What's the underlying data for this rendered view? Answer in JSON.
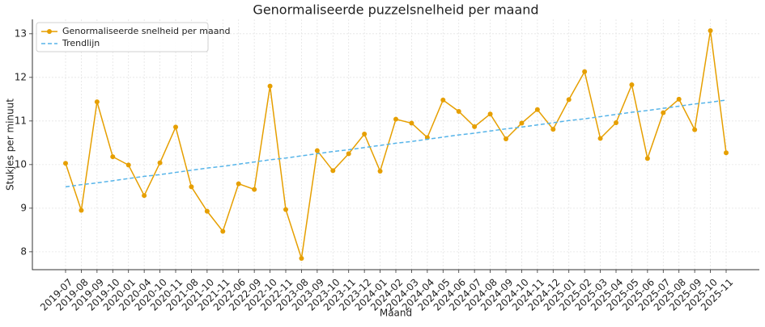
{
  "chart_data": {
    "type": "line",
    "title": "Genormaliseerde puzzelsnelheid per maand",
    "xlabel": "Maand",
    "ylabel": "Stukjes per minuut",
    "categories": [
      "2019-07",
      "2019-08",
      "2019-09",
      "2019-10",
      "2020-01",
      "2020-04",
      "2020-10",
      "2020-11",
      "2021-08",
      "2021-10",
      "2021-11",
      "2022-06",
      "2022-09",
      "2022-10",
      "2022-11",
      "2023-08",
      "2023-09",
      "2023-10",
      "2023-11",
      "2023-12",
      "2024-01",
      "2024-02",
      "2024-03",
      "2024-04",
      "2024-05",
      "2024-06",
      "2024-07",
      "2024-08",
      "2024-09",
      "2024-10",
      "2024-11",
      "2024-12",
      "2025-01",
      "2025-02",
      "2025-03",
      "2025-04",
      "2025-05",
      "2025-06",
      "2025-07",
      "2025-08",
      "2025-09",
      "2025-10",
      "2025-11"
    ],
    "series": [
      {
        "name": "Genormaliseerde snelheid per maand",
        "color": "#e69f00",
        "style": "solid",
        "marker": true,
        "values": [
          10.03,
          8.95,
          11.44,
          10.18,
          9.99,
          9.29,
          10.04,
          10.86,
          9.49,
          8.93,
          8.47,
          9.56,
          9.43,
          11.8,
          8.97,
          7.85,
          10.32,
          9.86,
          10.25,
          10.7,
          9.85,
          11.04,
          10.95,
          10.62,
          11.48,
          11.22,
          10.87,
          11.16,
          10.59,
          10.95,
          11.26,
          10.81,
          11.49,
          12.13,
          10.6,
          10.96,
          11.83,
          10.14,
          11.19,
          11.5,
          10.8,
          13.07,
          10.27
        ]
      },
      {
        "name": "Trendlijn",
        "color": "#56b4e9",
        "style": "dashed",
        "marker": false,
        "values": [
          9.49,
          9.54,
          9.58,
          9.63,
          9.68,
          9.73,
          9.77,
          9.82,
          9.87,
          9.92,
          9.96,
          10.01,
          10.06,
          10.11,
          10.15,
          10.2,
          10.25,
          10.3,
          10.34,
          10.39,
          10.44,
          10.49,
          10.53,
          10.58,
          10.63,
          10.68,
          10.72,
          10.77,
          10.82,
          10.86,
          10.91,
          10.96,
          11.01,
          11.05,
          11.1,
          11.15,
          11.2,
          11.24,
          11.29,
          11.34,
          11.39,
          11.43,
          11.48
        ]
      }
    ],
    "ylim": [
      7.59,
      13.33
    ],
    "yticks": [
      8,
      9,
      10,
      11,
      12,
      13
    ],
    "grid": true,
    "legend": "upper left"
  }
}
